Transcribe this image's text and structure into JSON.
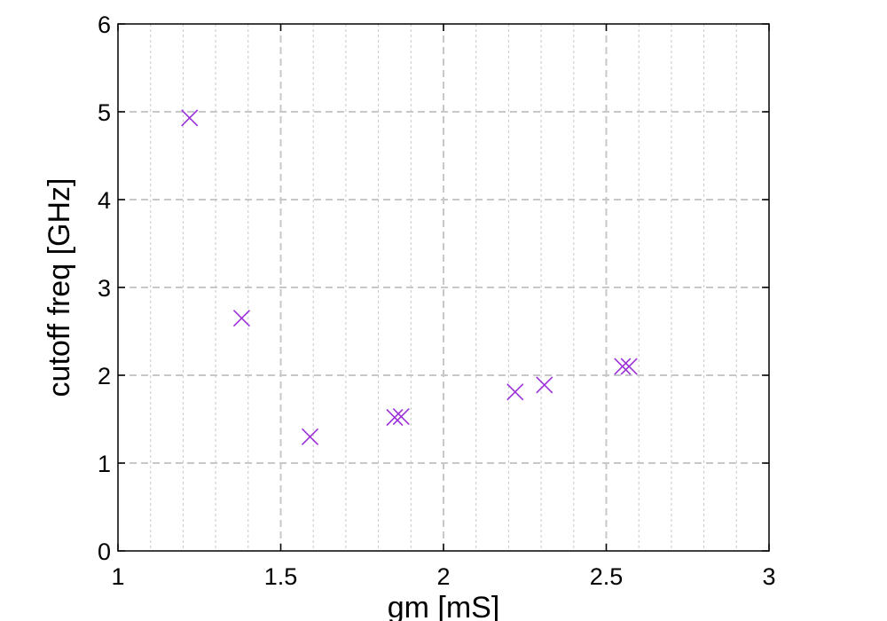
{
  "chart_data": {
    "type": "scatter",
    "title": "",
    "xlabel": "gm [mS]",
    "ylabel": "cutoff freq [GHz]",
    "xlim": [
      1,
      3
    ],
    "ylim": [
      0,
      6
    ],
    "x_major_ticks": [
      1,
      1.5,
      2,
      2.5,
      3
    ],
    "x_tick_labels": [
      "1",
      "1.5",
      "2",
      "2.5",
      "3"
    ],
    "y_major_ticks": [
      0,
      1,
      2,
      3,
      4,
      5,
      6
    ],
    "y_tick_labels": [
      "0",
      "1",
      "2",
      "3",
      "4",
      "5",
      "6"
    ],
    "x_minor_step": 0.1,
    "grid": true,
    "marker": "x",
    "marker_color": "#9b30d9",
    "grid_color": "#c8c8c8",
    "series": [
      {
        "points": [
          {
            "x": 1.22,
            "y": 4.93
          },
          {
            "x": 1.38,
            "y": 2.65
          },
          {
            "x": 1.59,
            "y": 1.3
          },
          {
            "x": 1.85,
            "y": 1.52
          },
          {
            "x": 1.87,
            "y": 1.53
          },
          {
            "x": 2.22,
            "y": 1.81
          },
          {
            "x": 2.31,
            "y": 1.89
          },
          {
            "x": 2.55,
            "y": 2.1
          },
          {
            "x": 2.57,
            "y": 2.1
          }
        ]
      }
    ]
  }
}
